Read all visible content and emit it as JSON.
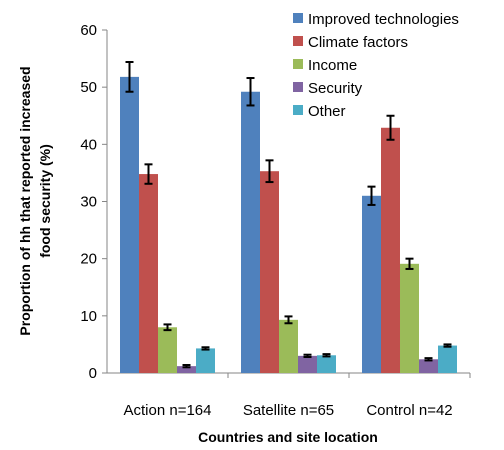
{
  "chart_data": {
    "type": "bar",
    "title": "",
    "xlabel": "Countries and site location",
    "ylabel": "Proportion of hh that reported increased food security (%)",
    "ylabel_lines": [
      "Proportion of hh that reported increased",
      "food security (%)"
    ],
    "ylim": [
      0,
      60
    ],
    "yticks": [
      0,
      10,
      20,
      30,
      40,
      50,
      60
    ],
    "categories": [
      "Action n=164",
      "Satellite n=65",
      "Control n=42"
    ],
    "legend_position": "top-right",
    "grid": false,
    "series": [
      {
        "name": "Improved technologies",
        "color": "#4F81BD",
        "values": [
          51.8,
          49.2,
          31.0
        ],
        "errors": [
          2.6,
          2.4,
          1.6
        ]
      },
      {
        "name": "Climate factors",
        "color": "#C0504D",
        "values": [
          34.8,
          35.3,
          42.9
        ],
        "errors": [
          1.7,
          1.9,
          2.1
        ]
      },
      {
        "name": "Income",
        "color": "#9BBB59",
        "values": [
          8.0,
          9.3,
          19.1
        ],
        "errors": [
          0.5,
          0.6,
          0.9
        ]
      },
      {
        "name": "Security",
        "color": "#8064A2",
        "values": [
          1.2,
          3.0,
          2.4
        ],
        "errors": [
          0.2,
          0.2,
          0.2
        ]
      },
      {
        "name": "Other",
        "color": "#4BACC6",
        "values": [
          4.3,
          3.1,
          4.8
        ],
        "errors": [
          0.2,
          0.2,
          0.2
        ]
      }
    ]
  }
}
